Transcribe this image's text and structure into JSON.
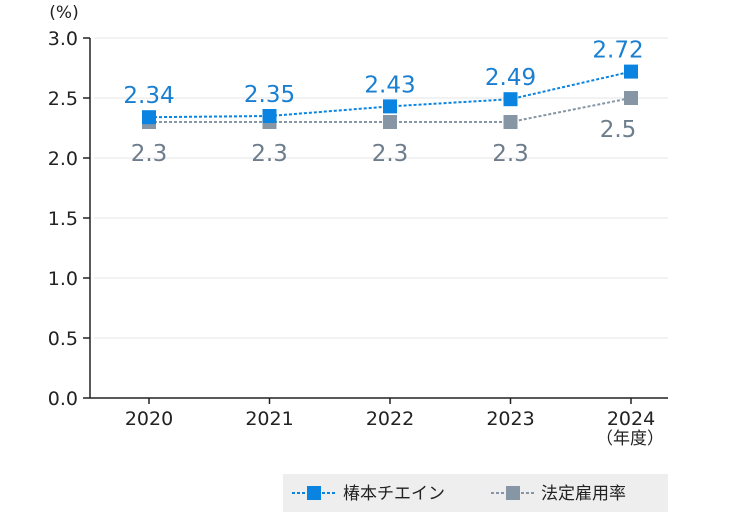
{
  "chart_data": {
    "type": "line",
    "y_unit": "(%)",
    "x_unit": "（年度）",
    "categories": [
      "2020",
      "2021",
      "2022",
      "2023",
      "2024"
    ],
    "ylim": [
      0,
      3.0
    ],
    "yticks": [
      "0.0",
      "0.5",
      "1.0",
      "1.5",
      "2.0",
      "2.5",
      "3.0"
    ],
    "grid": true,
    "legend_position": "bottom-right",
    "series": [
      {
        "name": "椿本チエイン",
        "values": [
          2.34,
          2.35,
          2.43,
          2.49,
          2.72
        ],
        "labels": [
          "2.34",
          "2.35",
          "2.43",
          "2.49",
          "2.72"
        ],
        "color": "#0a84e0",
        "label_color": "#1a7fd0"
      },
      {
        "name": "法定雇用率",
        "values": [
          2.3,
          2.3,
          2.3,
          2.3,
          2.5
        ],
        "labels": [
          "2.3",
          "2.3",
          "2.3",
          "2.3",
          "2.5"
        ],
        "color": "#8796a5",
        "label_color": "#6e7d8c"
      }
    ]
  }
}
